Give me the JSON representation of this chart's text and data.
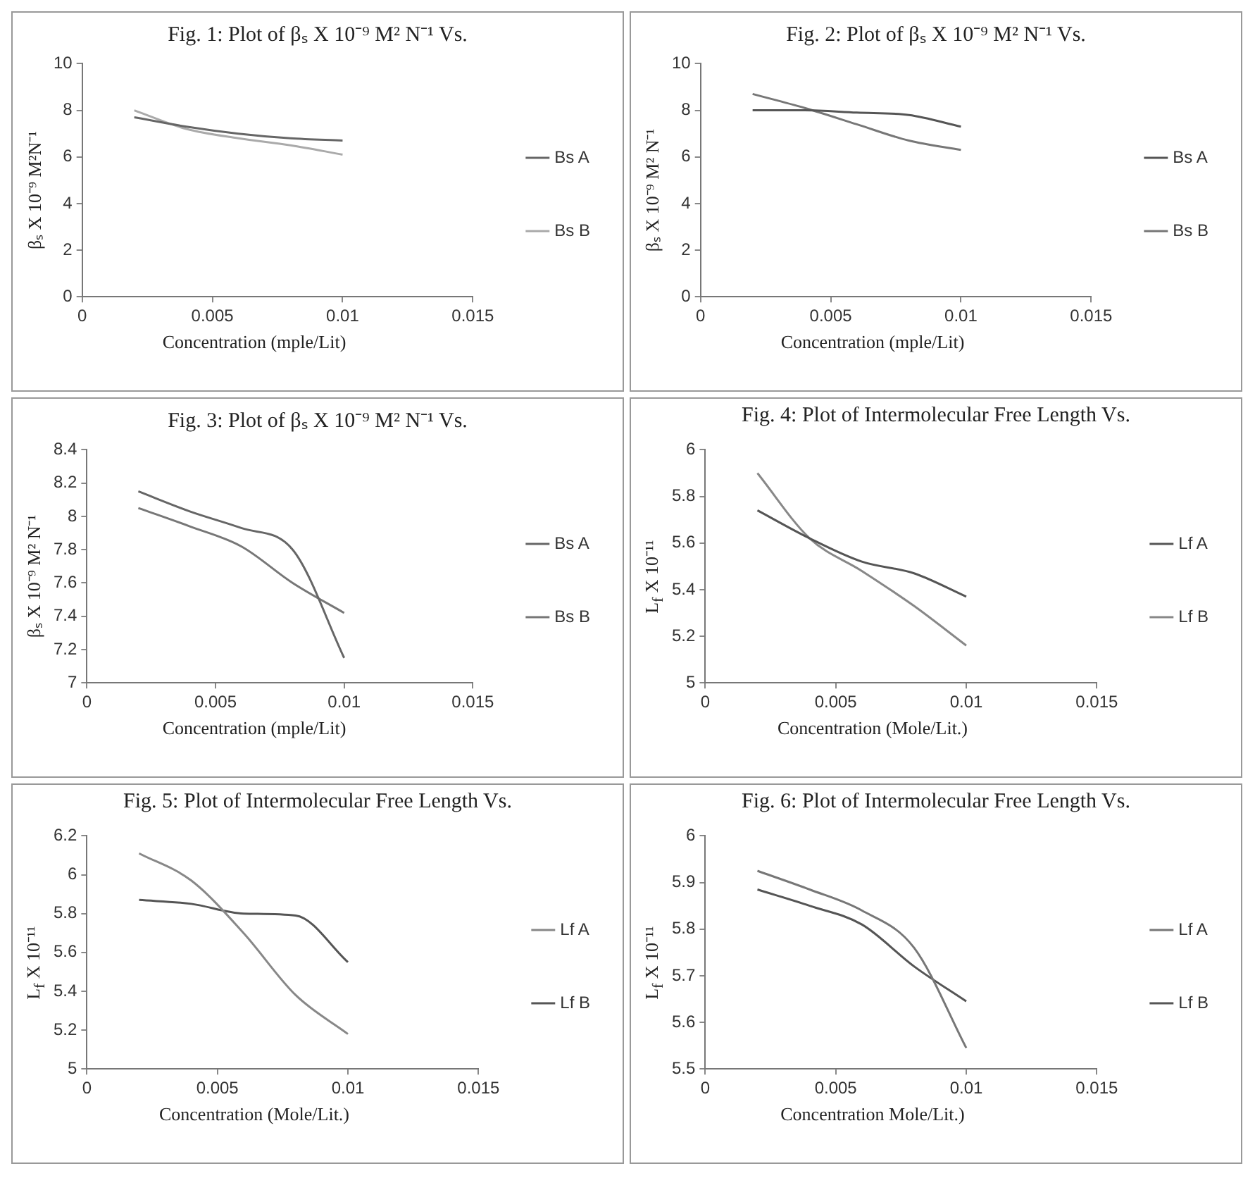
{
  "chart_data": [
    {
      "type": "line",
      "title": "Fig. 1: Plot of βₛ X 10⁻⁹ M² N⁻¹ Vs.",
      "xlabel": "Concentration (mple/Lit)",
      "ylabel": "βₛ X 10⁻⁹ M²N⁻¹",
      "x": [
        0.002,
        0.004,
        0.006,
        0.008,
        0.01
      ],
      "xlim": [
        0,
        0.015
      ],
      "xticks": [
        0,
        0.005,
        0.01,
        0.015
      ],
      "ylim": [
        0,
        10
      ],
      "yticks": [
        0,
        2,
        4,
        6,
        8,
        10
      ],
      "legend": "right",
      "marker": "none",
      "grid": false,
      "series": [
        {
          "name": "Bs A",
          "color": "#666666",
          "values": [
            7.7,
            7.3,
            7.0,
            6.8,
            6.7
          ]
        },
        {
          "name": "Bs B",
          "color": "#aaaaaa",
          "values": [
            8.0,
            7.2,
            6.8,
            6.5,
            6.1
          ]
        }
      ]
    },
    {
      "type": "line",
      "title": "Fig. 2: Plot of βₛ X 10⁻⁹ M² N⁻¹ Vs.",
      "xlabel": "Concentration (mple/Lit)",
      "ylabel": "βₛ X 10⁻⁹ M² N⁻¹",
      "x": [
        0.002,
        0.004,
        0.006,
        0.008,
        0.01
      ],
      "xlim": [
        0,
        0.015
      ],
      "xticks": [
        0,
        0.005,
        0.01,
        0.015
      ],
      "ylim": [
        0,
        10
      ],
      "yticks": [
        0,
        2,
        4,
        6,
        8,
        10
      ],
      "legend": "right",
      "marker": "none",
      "grid": false,
      "series": [
        {
          "name": "Bs A",
          "color": "#555555",
          "values": [
            8.0,
            8.0,
            7.9,
            7.8,
            7.3
          ]
        },
        {
          "name": "Bs B",
          "color": "#777777",
          "values": [
            8.7,
            8.1,
            7.4,
            6.7,
            6.3
          ]
        }
      ]
    },
    {
      "type": "line",
      "title": "Fig. 3: Plot of βₛ X 10⁻⁹ M² N⁻¹ Vs.",
      "xlabel": "Concentration (mple/Lit)",
      "ylabel": "βₛ X 10⁻⁹ M² N⁻¹",
      "x": [
        0.002,
        0.004,
        0.006,
        0.008,
        0.01
      ],
      "xlim": [
        0,
        0.015
      ],
      "xticks": [
        0,
        0.005,
        0.01,
        0.015
      ],
      "ylim": [
        7,
        8.4
      ],
      "yticks": [
        7,
        7.2,
        7.4,
        7.6,
        7.8,
        8,
        8.2,
        8.4
      ],
      "legend": "right",
      "marker": "none",
      "grid": false,
      "series": [
        {
          "name": "Bs A",
          "color": "#666666",
          "values": [
            8.15,
            8.03,
            7.93,
            7.8,
            7.15
          ]
        },
        {
          "name": "Bs B",
          "color": "#777777",
          "values": [
            8.05,
            7.94,
            7.82,
            7.6,
            7.42
          ]
        }
      ]
    },
    {
      "type": "line",
      "title": "Fig. 4: Plot of Intermolecular Free Length Vs.",
      "xlabel": "Concentration (Mole/Lit.)",
      "ylabel": "L$_{f}$ X 10⁻¹¹",
      "x": [
        0.002,
        0.004,
        0.006,
        0.008,
        0.01
      ],
      "xlim": [
        0,
        0.015
      ],
      "xticks": [
        0,
        0.005,
        0.01,
        0.015
      ],
      "ylim": [
        5,
        6
      ],
      "yticks": [
        5,
        5.2,
        5.4,
        5.6,
        5.8,
        6
      ],
      "legend": "right",
      "marker": "none",
      "grid": false,
      "series": [
        {
          "name": "Lf A",
          "color": "#555555",
          "values": [
            5.74,
            5.62,
            5.52,
            5.47,
            5.37
          ]
        },
        {
          "name": "Lf B",
          "color": "#888888",
          "values": [
            5.9,
            5.62,
            5.48,
            5.33,
            5.16
          ]
        }
      ]
    },
    {
      "type": "line",
      "title": "Fig. 5: Plot of Intermolecular Free Length Vs.",
      "xlabel": "Concentration (Mole/Lit.)",
      "ylabel": "L$_{f}$ X 10⁻¹¹",
      "x": [
        0.002,
        0.004,
        0.006,
        0.008,
        0.01
      ],
      "xlim": [
        0,
        0.015
      ],
      "xticks": [
        0,
        0.005,
        0.01,
        0.015
      ],
      "ylim": [
        5,
        6.2
      ],
      "yticks": [
        5,
        5.2,
        5.4,
        5.6,
        5.8,
        6,
        6.2
      ],
      "legend": "right",
      "marker": "none",
      "grid": false,
      "series": [
        {
          "name": "Lf A",
          "color": "#888888",
          "values": [
            6.11,
            5.97,
            5.7,
            5.38,
            5.18
          ]
        },
        {
          "name": "Lf B",
          "color": "#555555",
          "values": [
            5.87,
            5.85,
            5.8,
            5.79,
            5.55
          ]
        }
      ]
    },
    {
      "type": "line",
      "title": "Fig. 6: Plot of Intermolecular Free Length Vs.",
      "xlabel": "Concentration Mole/Lit.)",
      "ylabel": "L$_{f}$ X 10⁻¹¹",
      "x": [
        0.002,
        0.004,
        0.006,
        0.008,
        0.01
      ],
      "xlim": [
        0,
        0.015
      ],
      "xticks": [
        0,
        0.005,
        0.01,
        0.015
      ],
      "ylim": [
        5.5,
        6
      ],
      "yticks": [
        5.5,
        5.6,
        5.7,
        5.8,
        5.9,
        6
      ],
      "legend": "right",
      "marker": "none",
      "grid": false,
      "series": [
        {
          "name": "Lf A",
          "color": "#777777",
          "values": [
            5.925,
            5.885,
            5.84,
            5.76,
            5.545
          ]
        },
        {
          "name": "Lf B",
          "color": "#555555",
          "values": [
            5.885,
            5.85,
            5.81,
            5.72,
            5.645
          ]
        }
      ]
    }
  ]
}
